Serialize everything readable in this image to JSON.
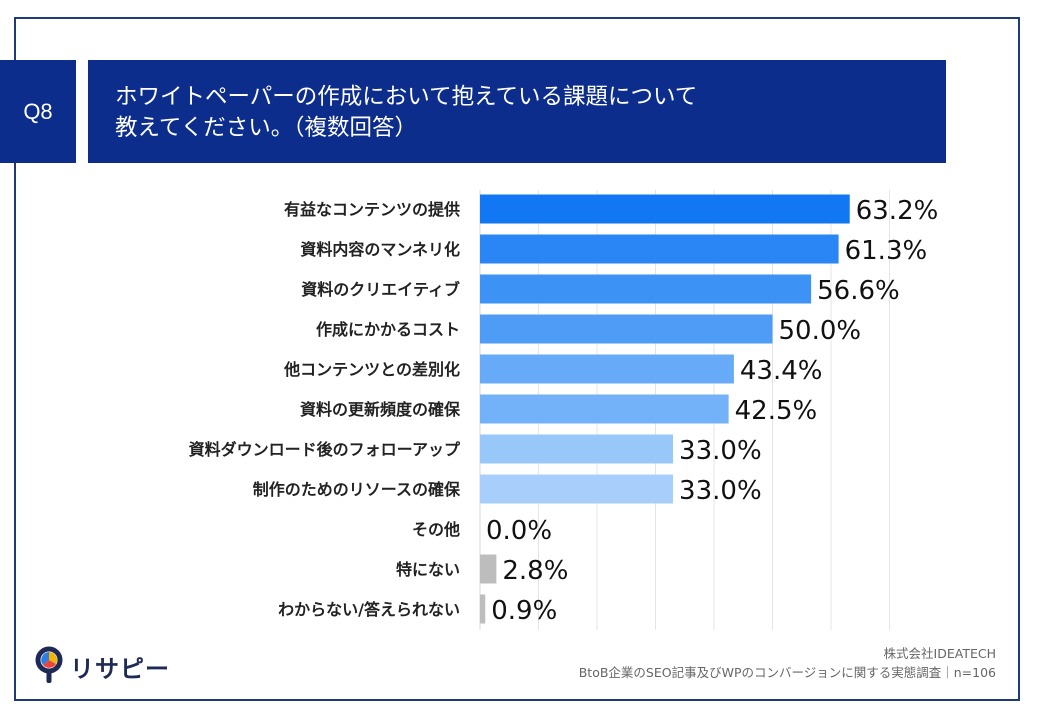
{
  "header": {
    "badge": "Q8",
    "title_line1": "ホワイトペーパーの作成において抱えている課題について",
    "title_line2": "教えてください。（複数回答）"
  },
  "chart_data": {
    "type": "bar",
    "orientation": "horizontal",
    "unit": "%",
    "xlim": [
      0,
      70
    ],
    "categories": [
      "有益なコンテンツの提供",
      "資料内容のマンネリ化",
      "資料のクリエイティブ",
      "作成にかかるコスト",
      "他コンテンツとの差別化",
      "資料の更新頻度の確保",
      "資料ダウンロード後のフォローアップ",
      "制作のためのリソースの確保",
      "その他",
      "特にない",
      "わからない/答えられない"
    ],
    "values": [
      63.2,
      61.3,
      56.6,
      50.0,
      43.4,
      42.5,
      33.0,
      33.0,
      0.0,
      2.8,
      0.9
    ],
    "value_labels": [
      "63.2%",
      "61.3%",
      "56.6%",
      "50.0%",
      "43.4%",
      "42.5%",
      "33.0%",
      "33.0%",
      "0.0%",
      "2.8%",
      "0.9%"
    ],
    "colors": [
      "#1177f2",
      "#2a86f4",
      "#3d92f5",
      "#4f9cf6",
      "#67aaf7",
      "#73b1f8",
      "#98c7fa",
      "#a8cffb",
      "#bdbdbd",
      "#bdbdbd",
      "#bdbdbd"
    ]
  },
  "logo": {
    "text": "リサピー",
    "icon": "pin-pie-logo-icon",
    "icon_colors": [
      "#1e2a55",
      "#f2b705",
      "#e8453c",
      "#2f7de1"
    ]
  },
  "footer": {
    "company": "株式会社IDEATECH",
    "survey": "BtoB企業のSEO記事及びWPのコンバージョンに関する実態調査｜n=106"
  }
}
